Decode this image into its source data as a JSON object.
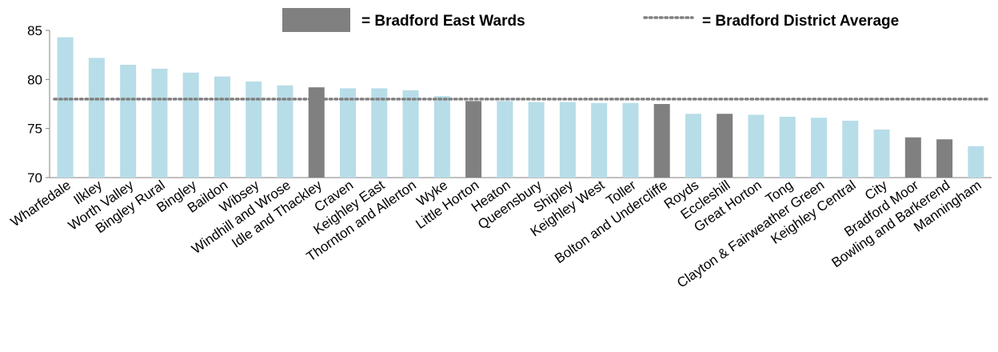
{
  "chart_data": {
    "type": "bar",
    "categories": [
      "Wharfedale",
      "Ilkley",
      "Worth Valley",
      "Bingley Rural",
      "Bingley",
      "Baildon",
      "Wibsey",
      "Windhill and Wrose",
      "Idle and Thackley",
      "Craven",
      "Keighley East",
      "Thornton and Allerton",
      "Wyke",
      "Little Horton",
      "Heaton",
      "Queensbury",
      "Shipley",
      "Keighley West",
      "Toller",
      "Bolton and Undercliffe",
      "Royds",
      "Eccleshill",
      "Great Horton",
      "Tong",
      "Clayton & Fairweather Green",
      "Keighley Central",
      "City",
      "Bradford Moor",
      "Bowling and Barkerend",
      "Manningham"
    ],
    "values": [
      84.3,
      82.2,
      81.5,
      81.1,
      80.7,
      80.3,
      79.8,
      79.4,
      79.2,
      79.1,
      79.1,
      78.9,
      78.3,
      77.8,
      77.8,
      77.7,
      77.7,
      77.6,
      77.6,
      77.5,
      76.5,
      76.5,
      76.4,
      76.2,
      76.1,
      75.8,
      74.9,
      74.1,
      73.9,
      73.2
    ],
    "bradford_east": [
      false,
      false,
      false,
      false,
      false,
      false,
      false,
      false,
      true,
      false,
      false,
      false,
      false,
      true,
      false,
      false,
      false,
      false,
      false,
      true,
      false,
      true,
      false,
      false,
      false,
      false,
      false,
      true,
      true,
      false
    ],
    "district_average": 78.0,
    "ylim": [
      70,
      85
    ],
    "yticks": [
      "70",
      "75",
      "80",
      "85"
    ],
    "colors": {
      "other": "#b7dde8",
      "east": "#808080",
      "average": "#808080"
    },
    "grid": false,
    "legend": {
      "placement": "top",
      "east_label": "= Bradford East Wards",
      "average_label": "= Bradford District Average"
    }
  }
}
